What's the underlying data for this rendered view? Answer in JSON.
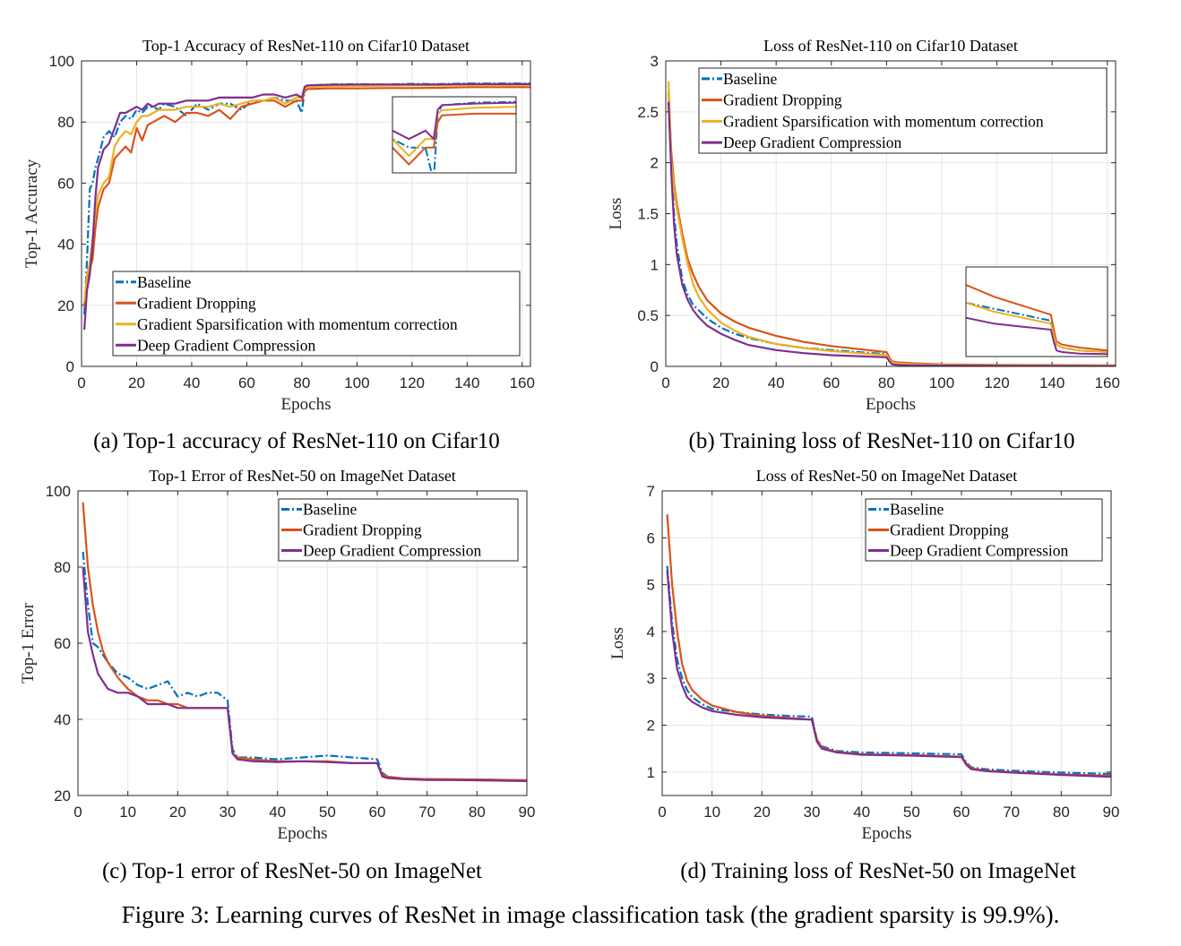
{
  "figure_caption": "Figure 3: Learning curves of ResNet in image classification task (the gradient sparsity is 99.9%).",
  "colors": {
    "Baseline": "#0072BD",
    "Gradient Dropping": "#D95319",
    "Gradient Sparsification with momentum correction": "#EDB120",
    "Deep Gradient Compression": "#7E2F8E"
  },
  "chart_data": [
    {
      "type": "line",
      "caption": "(a) Top-1 accuracy of ResNet-110 on Cifar10",
      "title": "Top-1 Accuracy of ResNet-110 on Cifar10 Dataset",
      "xlabel": "Epochs",
      "ylabel": "Top-1 Accuracy",
      "xlim": [
        0,
        163
      ],
      "ylim": [
        0,
        100
      ],
      "xticks": [
        0,
        20,
        40,
        60,
        80,
        100,
        120,
        140,
        160
      ],
      "yticks": [
        0,
        20,
        40,
        60,
        80,
        100
      ],
      "grid": true,
      "legend": "bottom",
      "inset": {
        "xlim": [
          70,
          100
        ],
        "ylim": [
          84,
          93
        ]
      },
      "x": [
        1,
        2,
        3,
        4,
        5,
        6,
        8,
        10,
        12,
        14,
        16,
        18,
        20,
        22,
        24,
        26,
        28,
        30,
        34,
        38,
        42,
        46,
        50,
        54,
        58,
        62,
        66,
        70,
        74,
        78,
        80,
        81,
        82,
        90,
        100,
        110,
        120,
        130,
        140,
        150,
        160,
        164
      ],
      "series": [
        {
          "name": "Baseline",
          "dash": "dashdot",
          "values": [
            17,
            35,
            58,
            60,
            65,
            68,
            75,
            77,
            75,
            80,
            82,
            81,
            84,
            83,
            85,
            85,
            84,
            86,
            85,
            82,
            86,
            84,
            86,
            86,
            84,
            87,
            87,
            88,
            87,
            87,
            83,
            91,
            92,
            92.3,
            92.4,
            92.3,
            92.5,
            92.4,
            92.6,
            92.6,
            92.6,
            92.6
          ]
        },
        {
          "name": "Gradient Dropping",
          "values": [
            20,
            28,
            32,
            35,
            45,
            52,
            58,
            60,
            68,
            70,
            72,
            70,
            78,
            74,
            79,
            80,
            81,
            82,
            80,
            83,
            83,
            82,
            84,
            81,
            85,
            86,
            87,
            87,
            85,
            87,
            87,
            90,
            90.8,
            91,
            91,
            91.1,
            91.1,
            91.2,
            91.4,
            91.4,
            91.4,
            91.4
          ]
        },
        {
          "name": "Gradient Sparsification with momentum correction",
          "values": [
            21,
            30,
            34,
            42,
            50,
            56,
            60,
            62,
            72,
            75,
            77,
            76,
            80,
            82,
            82,
            83,
            84,
            84,
            84,
            85,
            85,
            85,
            86,
            85,
            86,
            87,
            87,
            88,
            86,
            88,
            88,
            91,
            91.4,
            91.7,
            91.8,
            91.9,
            92,
            92,
            92.1,
            92.1,
            92.1,
            92.1
          ]
        },
        {
          "name": "Deep Gradient Compression",
          "values": [
            12,
            25,
            30,
            40,
            55,
            65,
            71,
            73,
            78,
            83,
            83,
            84,
            85,
            84,
            86,
            85,
            86,
            86,
            86,
            87,
            87,
            87,
            88,
            88,
            88,
            88,
            89,
            89,
            88,
            89,
            88,
            91.5,
            92,
            92.2,
            92.3,
            92.3,
            92.3,
            92.3,
            92.4,
            92.4,
            92.4,
            92.4
          ]
        }
      ]
    },
    {
      "type": "line",
      "caption": "(b) Training loss of ResNet-110 on Cifar10",
      "title": "Loss of ResNet-110 on Cifar10 Dataset",
      "xlabel": "Epochs",
      "ylabel": "Loss",
      "xlim": [
        0,
        163
      ],
      "ylim": [
        0,
        3
      ],
      "xticks": [
        0,
        20,
        40,
        60,
        80,
        100,
        120,
        140,
        160
      ],
      "yticks": [
        0,
        0.5,
        1,
        1.5,
        2,
        2.5,
        3
      ],
      "grid": true,
      "legend": "top",
      "inset": {
        "xlim": [
          50,
          100
        ],
        "ylim": [
          0,
          0.3
        ]
      },
      "x": [
        1,
        2,
        3,
        4,
        6,
        8,
        10,
        12,
        15,
        20,
        25,
        30,
        40,
        50,
        60,
        70,
        80,
        81,
        82,
        84,
        90,
        100,
        120,
        140,
        164
      ],
      "series": [
        {
          "name": "Baseline",
          "dash": "dashdot",
          "values": [
            2.6,
            2.0,
            1.5,
            1.2,
            0.85,
            0.7,
            0.6,
            0.55,
            0.47,
            0.38,
            0.32,
            0.28,
            0.22,
            0.18,
            0.16,
            0.14,
            0.12,
            0.08,
            0.04,
            0.03,
            0.02,
            0.015,
            0.01,
            0.008,
            0.007
          ]
        },
        {
          "name": "Gradient Dropping",
          "values": [
            2.7,
            2.1,
            1.8,
            1.6,
            1.3,
            1.05,
            0.9,
            0.78,
            0.65,
            0.52,
            0.44,
            0.38,
            0.3,
            0.24,
            0.2,
            0.17,
            0.14,
            0.09,
            0.05,
            0.04,
            0.03,
            0.02,
            0.015,
            0.012,
            0.01
          ]
        },
        {
          "name": "Gradient Sparsification with momentum correction",
          "values": [
            2.8,
            2.0,
            1.75,
            1.55,
            1.25,
            1.0,
            0.8,
            0.68,
            0.56,
            0.43,
            0.35,
            0.29,
            0.22,
            0.18,
            0.15,
            0.13,
            0.11,
            0.07,
            0.04,
            0.03,
            0.02,
            0.015,
            0.01,
            0.008,
            0.007
          ]
        },
        {
          "name": "Deep Gradient Compression",
          "values": [
            2.6,
            1.9,
            1.4,
            1.1,
            0.8,
            0.65,
            0.55,
            0.48,
            0.4,
            0.32,
            0.26,
            0.21,
            0.16,
            0.13,
            0.11,
            0.1,
            0.09,
            0.05,
            0.02,
            0.015,
            0.01,
            0.008,
            0.005,
            0.004,
            0.003
          ]
        }
      ]
    },
    {
      "type": "line",
      "caption": "(c) Top-1 error of ResNet-50 on ImageNet",
      "title": "Top-1 Error of ResNet-50 on ImageNet Dataset",
      "xlabel": "Epochs",
      "ylabel": "Top-1 Error",
      "xlim": [
        0,
        90
      ],
      "ylim": [
        20,
        100
      ],
      "xticks": [
        0,
        10,
        20,
        30,
        40,
        50,
        60,
        70,
        80,
        90
      ],
      "yticks": [
        20,
        40,
        60,
        80,
        100
      ],
      "grid": true,
      "legend": "top-right",
      "x": [
        1,
        2,
        3,
        4,
        5,
        6,
        8,
        10,
        12,
        14,
        16,
        18,
        20,
        22,
        24,
        26,
        28,
        30,
        31,
        32,
        35,
        40,
        45,
        50,
        55,
        60,
        61,
        62,
        65,
        70,
        80,
        90
      ],
      "series": [
        {
          "name": "Baseline",
          "dash": "dashdot",
          "values": [
            84,
            70,
            60,
            59,
            57,
            55,
            52,
            51,
            49,
            48,
            49,
            50,
            46,
            47,
            46,
            47,
            47,
            45,
            32,
            30,
            30,
            29.5,
            30,
            30.5,
            30,
            29.5,
            26,
            25,
            24.5,
            24.3,
            24.2,
            24
          ]
        },
        {
          "name": "Gradient Dropping",
          "values": [
            97,
            80,
            70,
            63,
            58,
            55,
            51,
            48,
            46,
            45,
            45,
            44,
            44,
            43,
            43,
            43,
            43,
            43,
            31,
            30,
            29.5,
            29,
            29,
            29,
            28.5,
            28.5,
            25.5,
            25,
            24.5,
            24.3,
            24.2,
            24
          ]
        },
        {
          "name": "Deep Gradient Compression",
          "values": [
            80,
            63,
            57,
            52,
            50,
            48,
            47,
            47,
            46,
            44,
            44,
            44,
            43,
            43,
            43,
            43,
            43,
            43,
            31,
            29.5,
            29,
            28.8,
            29,
            28.8,
            28.5,
            28.5,
            25,
            24.6,
            24.3,
            24.1,
            24,
            23.8
          ]
        }
      ]
    },
    {
      "type": "line",
      "caption": "(d) Training loss of ResNet-50 on ImageNet",
      "title": "Loss of ResNet-50 on ImageNet Dataset",
      "xlabel": "Epochs",
      "ylabel": "Loss",
      "xlim": [
        0,
        90
      ],
      "ylim": [
        0.5,
        7
      ],
      "xticks": [
        0,
        10,
        20,
        30,
        40,
        50,
        60,
        70,
        80,
        90
      ],
      "yticks": [
        1,
        2,
        3,
        4,
        5,
        6,
        7
      ],
      "grid": true,
      "legend": "top-right",
      "x": [
        1,
        2,
        3,
        4,
        5,
        6,
        8,
        10,
        15,
        20,
        25,
        30,
        31,
        32,
        35,
        40,
        50,
        60,
        61,
        62,
        65,
        70,
        80,
        90
      ],
      "series": [
        {
          "name": "Baseline",
          "dash": "dashdot",
          "values": [
            5.4,
            4.2,
            3.4,
            3.0,
            2.75,
            2.6,
            2.45,
            2.35,
            2.28,
            2.23,
            2.2,
            2.18,
            1.7,
            1.55,
            1.45,
            1.42,
            1.4,
            1.38,
            1.2,
            1.1,
            1.06,
            1.03,
            0.99,
            0.96
          ]
        },
        {
          "name": "Gradient Dropping",
          "values": [
            6.5,
            5.0,
            4.0,
            3.3,
            2.95,
            2.75,
            2.55,
            2.42,
            2.28,
            2.2,
            2.16,
            2.12,
            1.7,
            1.52,
            1.43,
            1.38,
            1.36,
            1.33,
            1.18,
            1.08,
            1.03,
            1.0,
            0.95,
            0.92
          ]
        },
        {
          "name": "Deep Gradient Compression",
          "values": [
            5.3,
            4.0,
            3.2,
            2.85,
            2.6,
            2.5,
            2.38,
            2.3,
            2.22,
            2.17,
            2.14,
            2.12,
            1.65,
            1.5,
            1.42,
            1.37,
            1.35,
            1.32,
            1.15,
            1.06,
            1.02,
            0.99,
            0.94,
            0.9
          ]
        }
      ]
    }
  ]
}
